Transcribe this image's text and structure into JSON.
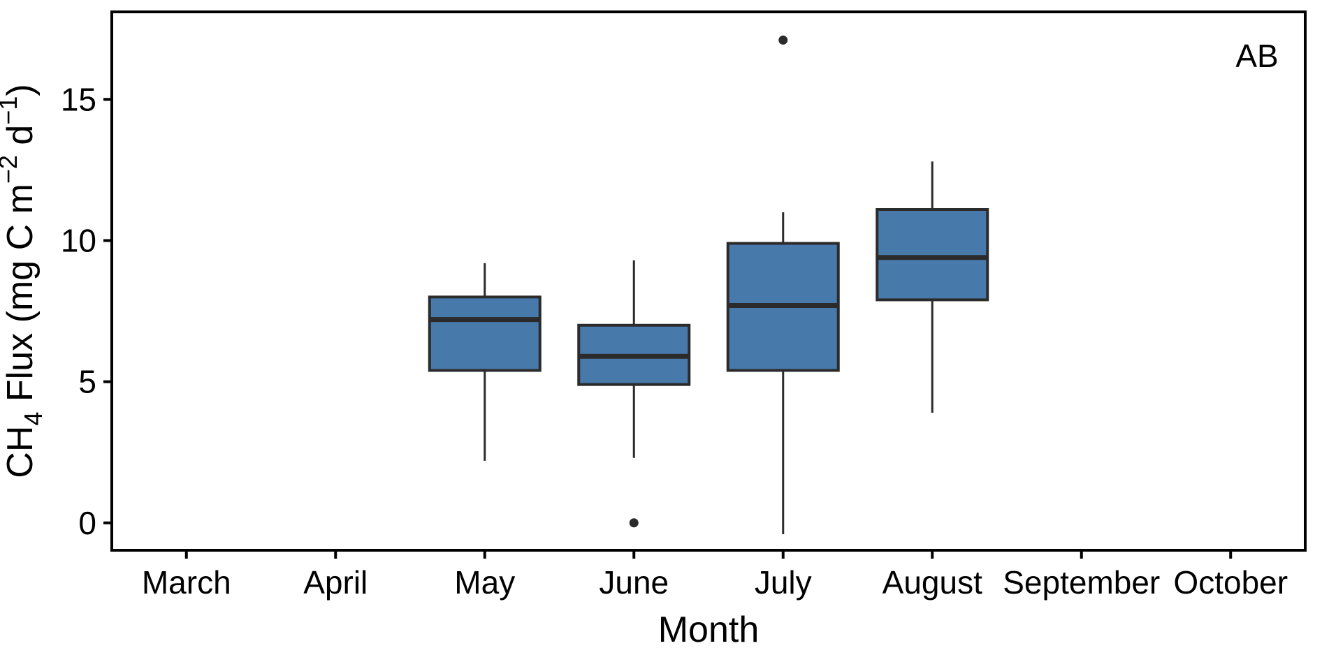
{
  "figure": {
    "annotation": "AB"
  },
  "chart_data": {
    "type": "boxplot",
    "title": "",
    "xlabel": "Month",
    "ylabel": "CH₄ Flux (mg C m⁻² d⁻¹)",
    "ylabel_parts": [
      {
        "text": "CH",
        "script": "normal"
      },
      {
        "text": "4",
        "script": "sub"
      },
      {
        "text": " Flux (mg C m",
        "script": "normal"
      },
      {
        "text": "−2",
        "script": "sup"
      },
      {
        "text": " d",
        "script": "normal"
      },
      {
        "text": "−1",
        "script": "sup"
      },
      {
        "text": ")",
        "script": "normal"
      }
    ],
    "categories": [
      "March",
      "April",
      "May",
      "June",
      "July",
      "August",
      "September",
      "October"
    ],
    "yticks": [
      0,
      5,
      10,
      15
    ],
    "ylim": [
      -0.97,
      18.1
    ],
    "grid": false,
    "legend": null,
    "series": [
      {
        "month": "May",
        "whisker_low": 2.2,
        "q1": 5.4,
        "median": 7.2,
        "q3": 8.0,
        "whisker_high": 9.2,
        "outliers": []
      },
      {
        "month": "June",
        "whisker_low": 2.3,
        "q1": 4.9,
        "median": 5.9,
        "q3": 7.0,
        "whisker_high": 9.3,
        "outliers": [
          0.0
        ]
      },
      {
        "month": "July",
        "whisker_low": -0.4,
        "q1": 5.4,
        "median": 7.7,
        "q3": 9.9,
        "whisker_high": 11.0,
        "outliers": [
          17.1
        ]
      },
      {
        "month": "August",
        "whisker_low": 3.9,
        "q1": 7.9,
        "median": 9.4,
        "q3": 11.1,
        "whisker_high": 12.8,
        "outliers": []
      }
    ],
    "colors": {
      "box_fill": "#4779AB",
      "box_stroke": "#2B2B2B",
      "median_line": "#2B2B2B",
      "whisker": "#2B2B2B",
      "outlier": "#2B2B2B",
      "panel_border": "#000000",
      "text": "#000000",
      "background": "#FFFFFF"
    }
  }
}
